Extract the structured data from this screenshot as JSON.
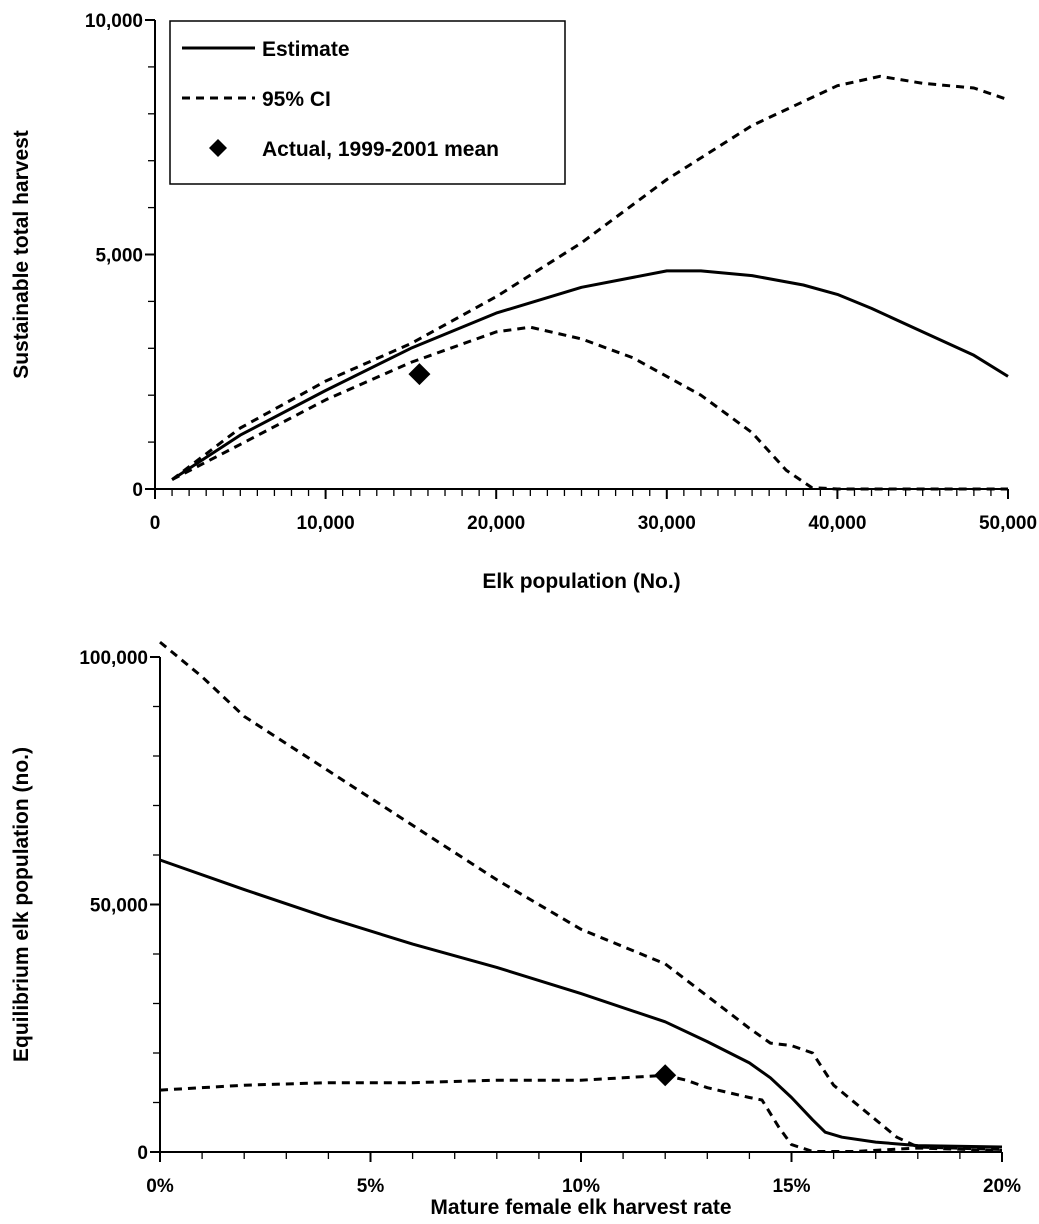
{
  "chart_data": [
    {
      "type": "line",
      "xlabel": "Elk population (No.)",
      "ylabel": "Sustainable total harvest",
      "xlim": [
        0,
        50000
      ],
      "ylim": [
        0,
        10000
      ],
      "x_ticks": [
        0,
        10000,
        20000,
        30000,
        40000,
        50000
      ],
      "x_tick_labels": [
        "0",
        "10,000",
        "20,000",
        "30,000",
        "40,000",
        "50,000"
      ],
      "y_ticks": [
        0,
        5000,
        10000
      ],
      "y_tick_labels": [
        "0",
        "5,000",
        "10,000"
      ],
      "x_minor_step": 1000,
      "y_minor_step": 1000,
      "legend": {
        "placement": "top-left",
        "entries": [
          {
            "label": "Estimate",
            "style": "solid"
          },
          {
            "label": "95% CI",
            "style": "dashed"
          },
          {
            "label": "Actual, 1999-2001 mean",
            "style": "diamond"
          }
        ]
      },
      "series": [
        {
          "style": "solid",
          "points": [
            [
              1000,
              200
            ],
            [
              5000,
              1150
            ],
            [
              10000,
              2100
            ],
            [
              15000,
              3000
            ],
            [
              20000,
              3750
            ],
            [
              25000,
              4300
            ],
            [
              30000,
              4650
            ],
            [
              32000,
              4650
            ],
            [
              35000,
              4550
            ],
            [
              38000,
              4350
            ],
            [
              40000,
              4150
            ],
            [
              42000,
              3850
            ],
            [
              45000,
              3350
            ],
            [
              48000,
              2850
            ],
            [
              50000,
              2400
            ]
          ]
        },
        {
          "style": "dashed",
          "points": [
            [
              1000,
              200
            ],
            [
              5000,
              1300
            ],
            [
              10000,
              2300
            ],
            [
              15000,
              3100
            ],
            [
              20000,
              4100
            ],
            [
              25000,
              5250
            ],
            [
              30000,
              6600
            ],
            [
              35000,
              7750
            ],
            [
              40000,
              8600
            ],
            [
              42500,
              8800
            ],
            [
              45000,
              8650
            ],
            [
              48000,
              8550
            ],
            [
              50000,
              8300
            ]
          ]
        },
        {
          "style": "dashed",
          "points": [
            [
              1000,
              200
            ],
            [
              5000,
              950
            ],
            [
              10000,
              1900
            ],
            [
              15000,
              2700
            ],
            [
              20000,
              3350
            ],
            [
              22000,
              3450
            ],
            [
              25000,
              3200
            ],
            [
              28000,
              2800
            ],
            [
              32000,
              2000
            ],
            [
              35000,
              1200
            ],
            [
              37000,
              400
            ],
            [
              38500,
              30
            ],
            [
              40000,
              0
            ],
            [
              50000,
              0
            ]
          ]
        }
      ],
      "markers": [
        {
          "x": 15500,
          "y": 2450,
          "shape": "diamond"
        }
      ]
    },
    {
      "type": "line",
      "xlabel": "Mature female elk harvest rate",
      "ylabel": "Equilibrium elk population (no.)",
      "xlim": [
        0,
        20
      ],
      "ylim": [
        0,
        100000
      ],
      "x_ticks": [
        0,
        5,
        10,
        15,
        20
      ],
      "x_tick_labels": [
        "0%",
        "5%",
        "10%",
        "15%",
        "20%"
      ],
      "y_ticks": [
        0,
        50000,
        100000
      ],
      "y_tick_labels": [
        "0",
        "50,000",
        "100,000"
      ],
      "x_minor_step": 1,
      "y_minor_step": 10000,
      "series": [
        {
          "style": "solid",
          "points": [
            [
              0,
              59000
            ],
            [
              2,
              53000
            ],
            [
              4,
              47300
            ],
            [
              6,
              42000
            ],
            [
              8,
              37300
            ],
            [
              10,
              32000
            ],
            [
              12,
              26300
            ],
            [
              13,
              22300
            ],
            [
              14,
              18000
            ],
            [
              14.5,
              15000
            ],
            [
              15,
              11000
            ],
            [
              15.5,
              6500
            ],
            [
              15.8,
              4000
            ],
            [
              16.2,
              3000
            ],
            [
              17,
              2000
            ],
            [
              18,
              1300
            ],
            [
              20,
              1000
            ]
          ]
        },
        {
          "style": "dashed",
          "points": [
            [
              0,
              103000
            ],
            [
              1,
              96000
            ],
            [
              2,
              88000
            ],
            [
              4,
              77000
            ],
            [
              6,
              66000
            ],
            [
              8,
              55000
            ],
            [
              10,
              45000
            ],
            [
              12,
              38000
            ],
            [
              13,
              31500
            ],
            [
              14,
              25000
            ],
            [
              14.5,
              22000
            ],
            [
              15,
              21500
            ],
            [
              15.5,
              20000
            ],
            [
              16,
              13500
            ],
            [
              17,
              6500
            ],
            [
              17.5,
              3000
            ],
            [
              18,
              1000
            ],
            [
              20,
              500
            ]
          ]
        },
        {
          "style": "dashed",
          "points": [
            [
              0,
              12500
            ],
            [
              2,
              13500
            ],
            [
              4,
              14000
            ],
            [
              6,
              14000
            ],
            [
              8,
              14500
            ],
            [
              10,
              14500
            ],
            [
              11,
              15000
            ],
            [
              12,
              15500
            ],
            [
              12.5,
              14500
            ],
            [
              13,
              13000
            ],
            [
              14,
              11000
            ],
            [
              14.3,
              10500
            ],
            [
              14.7,
              5000
            ],
            [
              15,
              1500
            ],
            [
              15.5,
              100
            ],
            [
              16.5,
              100
            ],
            [
              18,
              800
            ],
            [
              20,
              300
            ]
          ]
        }
      ],
      "markers": [
        {
          "x": 12,
          "y": 15500,
          "shape": "diamond"
        }
      ]
    }
  ]
}
